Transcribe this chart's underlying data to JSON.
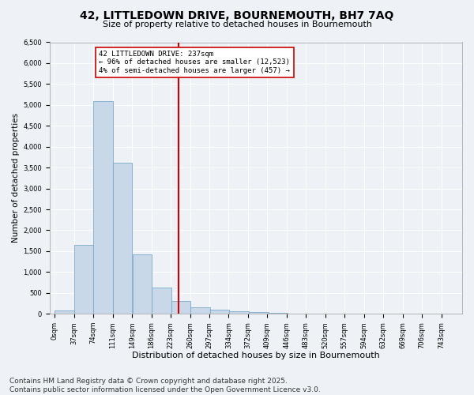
{
  "title": "42, LITTLEDOWN DRIVE, BOURNEMOUTH, BH7 7AQ",
  "subtitle": "Size of property relative to detached houses in Bournemouth",
  "xlabel": "Distribution of detached houses by size in Bournemouth",
  "ylabel": "Number of detached properties",
  "bar_color": "#c8d8e8",
  "bar_edge_color": "#7aaaca",
  "background_color": "#eef2f7",
  "grid_color": "#ffffff",
  "vline_x": 237,
  "vline_color": "#cc0000",
  "annotation_text": "42 LITTLEDOWN DRIVE: 237sqm\n← 96% of detached houses are smaller (12,523)\n4% of semi-detached houses are larger (457) →",
  "annotation_box_color": "#cc0000",
  "bins_left": [
    0,
    37,
    74,
    111,
    149,
    186,
    223,
    260,
    297,
    334,
    372,
    409,
    446,
    483,
    520,
    557,
    594,
    632,
    669,
    706
  ],
  "bin_width": 37,
  "bin_heights": [
    75,
    1650,
    5100,
    3620,
    1420,
    620,
    310,
    155,
    100,
    55,
    35,
    15,
    5,
    0,
    0,
    0,
    0,
    0,
    0,
    0
  ],
  "ylim": [
    0,
    6500
  ],
  "yticks": [
    0,
    500,
    1000,
    1500,
    2000,
    2500,
    3000,
    3500,
    4000,
    4500,
    5000,
    5500,
    6000,
    6500
  ],
  "xtick_labels": [
    "0sqm",
    "37sqm",
    "74sqm",
    "111sqm",
    "149sqm",
    "186sqm",
    "223sqm",
    "260sqm",
    "297sqm",
    "334sqm",
    "372sqm",
    "409sqm",
    "446sqm",
    "483sqm",
    "520sqm",
    "557sqm",
    "594sqm",
    "632sqm",
    "669sqm",
    "706sqm",
    "743sqm"
  ],
  "xlim_min": -10,
  "xlim_max": 780,
  "footnote": "Contains HM Land Registry data © Crown copyright and database right 2025.\nContains public sector information licensed under the Open Government Licence v3.0.",
  "footnote_fontsize": 6.5,
  "title_fontsize": 10,
  "subtitle_fontsize": 8,
  "xlabel_fontsize": 8,
  "ylabel_fontsize": 7.5,
  "tick_fontsize": 6,
  "annotation_fontsize": 6.5
}
